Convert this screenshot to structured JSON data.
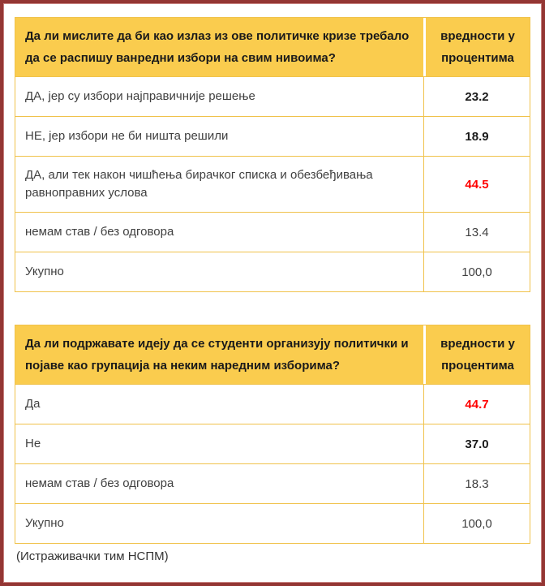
{
  "colors": {
    "frame": "#943634",
    "frame_inner": "#c98381",
    "header_gold": "#facc4e",
    "grid_gold": "#f0c24b",
    "value_red": "#ff0000",
    "text_dark": "#1a1a1a",
    "text_gray": "#404040"
  },
  "tables": [
    {
      "question": "Да ли мислите да би као излаз из ове политичке кризе требало да се распишу ванредни избори на свим нивоима?",
      "value_header": "вредности у процентима",
      "rows": [
        {
          "label": "ДА, јер су избори најправичније решење",
          "value": "23.2",
          "style": "bold"
        },
        {
          "label": "НЕ, јер избори не би ништа решили",
          "value": "18.9",
          "style": "bold"
        },
        {
          "label": "ДА, али тек након чишћења бирачког списка и обезбеђивања равноправних услова",
          "value": "44.5",
          "style": "bold-red"
        },
        {
          "label": "немам став / без одговора",
          "value": "13.4",
          "style": "normal"
        },
        {
          "label": "Укупно",
          "value": "100,0",
          "style": "normal"
        }
      ]
    },
    {
      "question": "Да ли подржавате идеју да се студенти организују политички и појаве као групација на неким наредним изборима?",
      "value_header": "вредности у процентима",
      "rows": [
        {
          "label": "Да",
          "value": "44.7",
          "style": "bold-red"
        },
        {
          "label": "Не",
          "value": "37.0",
          "style": "bold"
        },
        {
          "label": "немам став / без одговора",
          "value": "18.3",
          "style": "normal"
        },
        {
          "label": "Укупно",
          "value": "100,0",
          "style": "normal"
        }
      ]
    }
  ],
  "footer": {
    "credit": "(Истраживачки тим НСПМ)"
  }
}
